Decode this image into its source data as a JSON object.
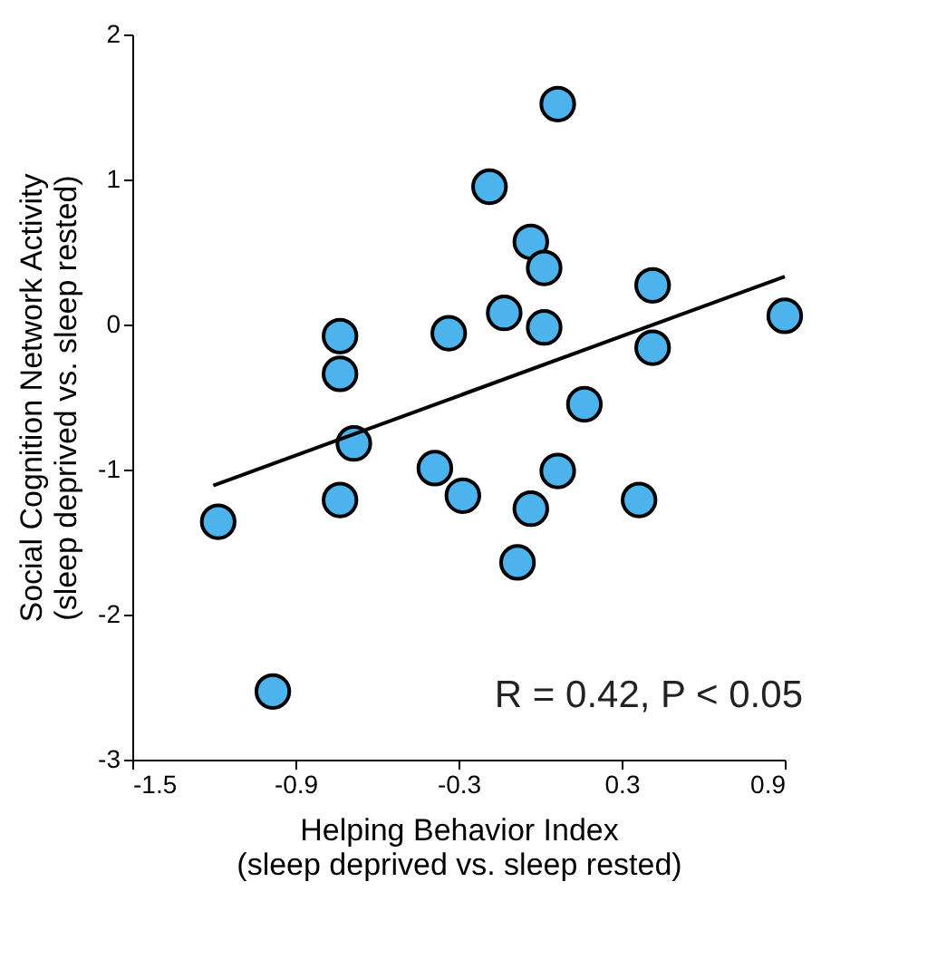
{
  "chart_data": {
    "type": "scatter",
    "xlabel": "Helping Behavior Index\n(sleep deprived vs. sleep rested)",
    "ylabel": "Social Cognition Network Activity\n(sleep deprived vs. sleep rested)",
    "annotations": [
      "R = 0.42, P < 0.05"
    ],
    "xlim": [
      -1.5,
      0.9
    ],
    "xticks": [
      {
        "value": -1.5,
        "label": "-1.5"
      },
      {
        "value": -0.9,
        "label": "-0.9"
      },
      {
        "value": -0.3,
        "label": "-0.3"
      },
      0.3,
      0.9
    ],
    "ylim": [
      -3,
      2
    ],
    "yticks": [
      {
        "value": -3,
        "label": "-3"
      },
      {
        "value": -2,
        "label": "-2"
      },
      {
        "value": -1,
        "label": "-1"
      },
      0,
      1,
      2
    ],
    "grid": false,
    "series": [
      {
        "color": "#4db3ec",
        "marker": "circle",
        "x": [
          0.065,
          -0.186,
          -0.034,
          0.015,
          0.414,
          0.9,
          -0.132,
          0.015,
          -0.336,
          -0.736,
          0.414,
          -0.736,
          0.163,
          -0.685,
          -0.387,
          0.065,
          -0.284,
          -0.736,
          0.364,
          -0.034,
          -1.184,
          -0.083,
          -0.983
        ],
        "values": [
          1.52,
          0.95,
          0.57,
          0.39,
          0.27,
          0.06,
          0.08,
          -0.02,
          -0.06,
          -0.08,
          -0.16,
          -0.34,
          -0.55,
          -0.82,
          -0.99,
          -1.01,
          -1.18,
          -1.21,
          -1.21,
          -1.27,
          -1.36,
          -1.64,
          -2.53
        ]
      },
      {
        "type": "line",
        "color": "#000000",
        "line_style": "solid",
        "x": [
          -1.202,
          0.9
        ],
        "values": [
          -1.11,
          0.33
        ]
      }
    ]
  }
}
